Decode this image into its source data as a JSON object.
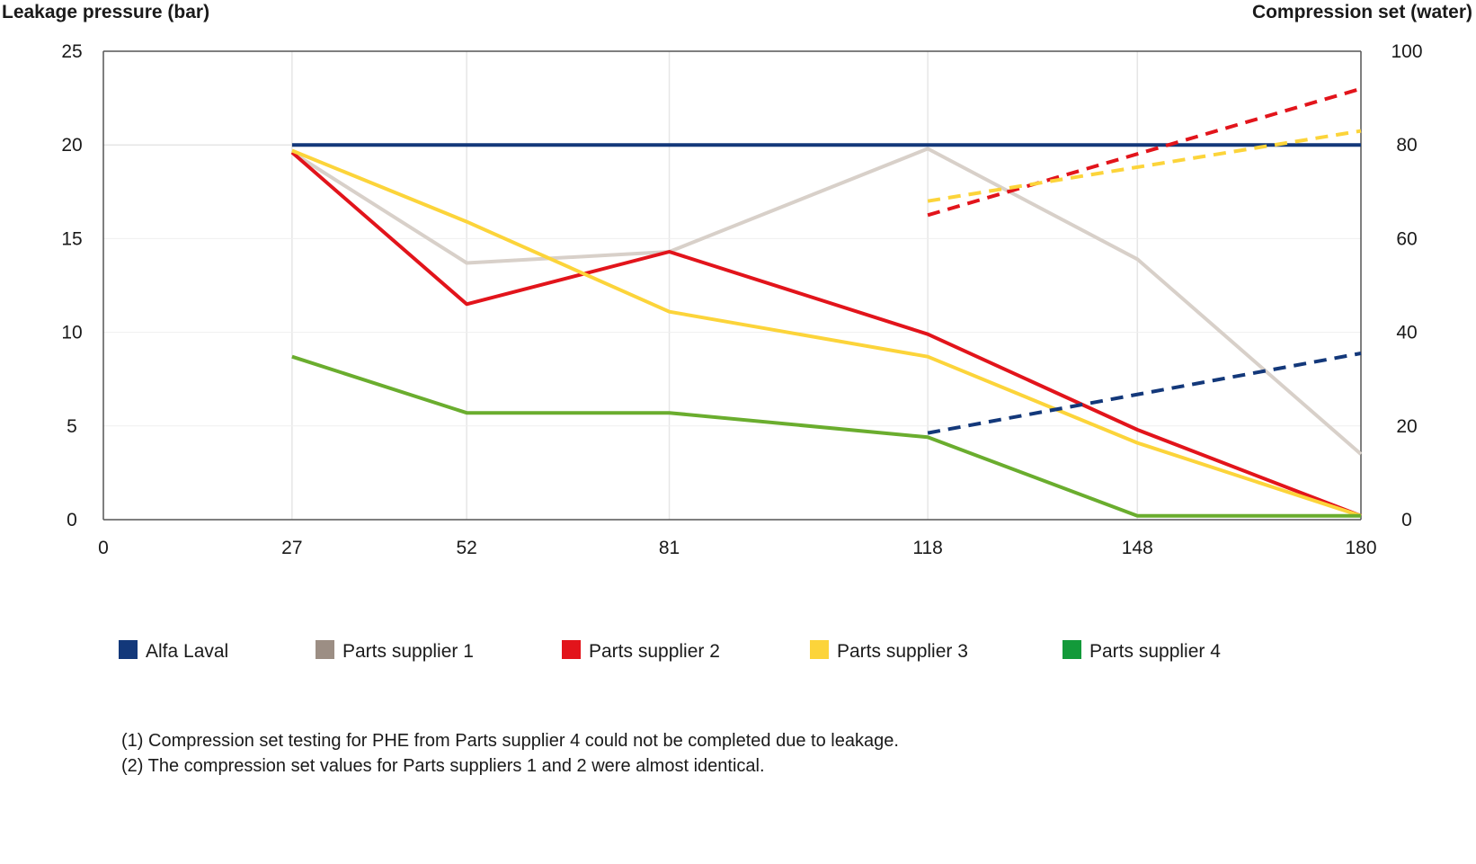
{
  "chart_data": {
    "type": "line",
    "title": "",
    "y_left_label": "Leakage pressure (bar)",
    "y_right_label": "Compression set (water)",
    "x_ticks": [
      0,
      27,
      52,
      81,
      118,
      148,
      180
    ],
    "x_tick_labels": [
      "0",
      "27",
      "52",
      "81",
      "118",
      "148",
      "180"
    ],
    "xlim": [
      0,
      180
    ],
    "y_left_ticks": [
      0,
      5,
      10,
      15,
      20,
      25
    ],
    "y_left_tick_labels": [
      "0",
      "5",
      "10",
      "15",
      "20",
      "25"
    ],
    "y_left_lim": [
      0,
      25
    ],
    "y_right_ticks": [
      0,
      20,
      40,
      60,
      80,
      100
    ],
    "y_right_tick_labels": [
      "0",
      "20",
      "40",
      "60",
      "80",
      "100"
    ],
    "y_right_lim": [
      0,
      100
    ],
    "grid": "vertical",
    "legend_position": "bottom",
    "series": [
      {
        "name": "Alfa Laval",
        "color": "#13387a",
        "axis": "left",
        "style": "solid",
        "x": [
          27,
          52,
          81,
          118,
          148,
          180
        ],
        "y": [
          20,
          20,
          20,
          20,
          20,
          20
        ]
      },
      {
        "name": "Parts supplier 1",
        "color": "#d8d0c9",
        "axis": "left",
        "style": "solid",
        "x": [
          27,
          52,
          81,
          118,
          148,
          180
        ],
        "y": [
          19.6,
          13.7,
          14.3,
          19.8,
          13.9,
          3.5
        ]
      },
      {
        "name": "Parts supplier 2",
        "color": "#e2141b",
        "axis": "left",
        "style": "solid",
        "x": [
          27,
          52,
          81,
          118,
          148,
          180
        ],
        "y": [
          19.6,
          11.5,
          14.3,
          9.9,
          4.8,
          0.2
        ]
      },
      {
        "name": "Parts supplier 3",
        "color": "#fcd43a",
        "axis": "left",
        "style": "solid",
        "x": [
          27,
          52,
          81,
          118,
          148,
          180
        ],
        "y": [
          19.7,
          15.9,
          11.1,
          8.7,
          4.1,
          0.2
        ]
      },
      {
        "name": "Parts supplier 4",
        "color": "#6aad2e",
        "axis": "left",
        "style": "solid",
        "x": [
          27,
          52,
          81,
          118,
          148,
          180
        ],
        "y": [
          8.7,
          5.7,
          5.7,
          4.4,
          0.2,
          0.2
        ]
      },
      {
        "name": "Alfa Laval",
        "color": "#13387a",
        "axis": "right",
        "style": "dashed",
        "x": [
          118,
          180
        ],
        "y": [
          18.5,
          35.5
        ]
      },
      {
        "name": "Parts supplier 2",
        "color": "#e2141b",
        "axis": "right",
        "style": "dashed",
        "x": [
          118,
          180
        ],
        "y": [
          65,
          92
        ]
      },
      {
        "name": "Parts supplier 3",
        "color": "#fcd43a",
        "axis": "right",
        "style": "dashed",
        "x": [
          118,
          180
        ],
        "y": [
          68,
          83
        ]
      }
    ],
    "legend": [
      {
        "label": "Alfa Laval",
        "color": "#13387a"
      },
      {
        "label": "Parts supplier 1",
        "color": "#9c8e84"
      },
      {
        "label": "Parts supplier 2",
        "color": "#e2141b"
      },
      {
        "label": "Parts supplier 3",
        "color": "#fcd43a"
      },
      {
        "label": "Parts supplier 4",
        "color": "#139a3a"
      }
    ],
    "footnotes": [
      "(1) Compression set testing for PHE from Parts supplier 4 could not be completed due to leakage.",
      "(2) The compression set values for Parts suppliers 1 and 2 were almost identical."
    ]
  }
}
